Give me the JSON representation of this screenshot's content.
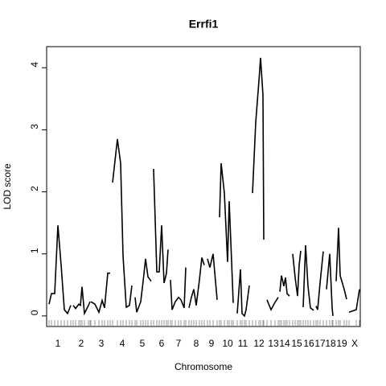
{
  "chart_data": {
    "type": "line",
    "title": "Errfi1",
    "x_label": "Chromosome",
    "y_label": "LOD score",
    "xlim": [
      0,
      390
    ],
    "ylim": [
      -0.17,
      4.34
    ],
    "yticks": [
      0,
      1,
      2,
      3,
      4
    ],
    "xticks": [
      {
        "value": 14,
        "label": "1"
      },
      {
        "value": 43,
        "label": "2"
      },
      {
        "value": 68,
        "label": "3"
      },
      {
        "value": 94,
        "label": "4"
      },
      {
        "value": 119,
        "label": "5"
      },
      {
        "value": 143,
        "label": "6"
      },
      {
        "value": 164,
        "label": "7"
      },
      {
        "value": 186,
        "label": "8"
      },
      {
        "value": 205,
        "label": "9"
      },
      {
        "value": 225,
        "label": "10"
      },
      {
        "value": 244,
        "label": "11"
      },
      {
        "value": 264,
        "label": "12"
      },
      {
        "value": 282,
        "label": "13"
      },
      {
        "value": 296,
        "label": "14"
      },
      {
        "value": 311,
        "label": "15"
      },
      {
        "value": 326,
        "label": "16"
      },
      {
        "value": 340,
        "label": "17"
      },
      {
        "value": 353,
        "label": "18"
      },
      {
        "value": 367,
        "label": "19"
      },
      {
        "value": 383,
        "label": "X"
      }
    ],
    "series": [
      {
        "color": "#000000",
        "x": [
          3,
          6,
          10,
          14,
          18,
          22,
          26,
          30
        ],
        "values": [
          0.19,
          0.36,
          0.36,
          1.46,
          0.82,
          0.1,
          0.04,
          0.17
        ]
      },
      {
        "color": "#000000",
        "x": [
          33,
          36,
          40,
          42,
          44,
          47,
          52,
          54
        ],
        "values": [
          0.17,
          0.12,
          0.19,
          0.17,
          0.47,
          0.04,
          0.17,
          0.23
        ]
      },
      {
        "color": "#000000",
        "x": [
          55,
          60,
          65,
          69,
          72,
          76,
          79
        ],
        "values": [
          0.23,
          0.19,
          0.06,
          0.25,
          0.13,
          0.69,
          0.69
        ]
      },
      {
        "color": "#000000",
        "x": [
          82,
          88,
          92,
          95,
          99,
          103,
          106
        ],
        "values": [
          2.15,
          2.85,
          2.46,
          0.97,
          0.14,
          0.17,
          0.49
        ]
      },
      {
        "color": "#000000",
        "x": [
          110,
          112,
          117,
          120,
          123,
          126,
          130
        ],
        "values": [
          0.3,
          0.06,
          0.23,
          0.56,
          0.92,
          0.63,
          0.56
        ]
      },
      {
        "color": "#000000",
        "x": [
          133,
          137,
          140,
          143,
          146,
          149,
          151
        ],
        "values": [
          2.37,
          0.71,
          0.71,
          1.46,
          0.53,
          0.69,
          1.07
        ]
      },
      {
        "color": "#000000",
        "x": [
          154,
          156,
          160,
          164,
          167,
          171,
          173
        ],
        "values": [
          0.58,
          0.1,
          0.23,
          0.3,
          0.26,
          0.13,
          0.78
        ]
      },
      {
        "color": "#000000",
        "x": [
          177,
          180,
          183,
          186,
          190,
          193,
          196
        ],
        "values": [
          0.13,
          0.3,
          0.43,
          0.17,
          0.58,
          0.94,
          0.82
        ]
      },
      {
        "color": "#000000",
        "x": [
          200,
          203,
          207,
          212
        ],
        "values": [
          0.92,
          0.78,
          1.0,
          0.26
        ]
      },
      {
        "color": "#000000",
        "x": [
          215,
          217,
          221,
          225,
          227,
          230,
          232
        ],
        "values": [
          1.59,
          2.46,
          1.98,
          0.87,
          1.85,
          0.88,
          0.21
        ]
      },
      {
        "color": "#000000",
        "x": [
          237,
          241,
          243,
          246,
          248,
          252
        ],
        "values": [
          0.04,
          0.75,
          0.04,
          0,
          0.1,
          0.49
        ]
      },
      {
        "color": "#000000",
        "x": [
          256,
          260,
          264,
          266,
          269,
          270
        ],
        "values": [
          1.98,
          3.12,
          3.79,
          4.16,
          3.56,
          1.23
        ]
      },
      {
        "color": "#000000",
        "x": [
          274,
          279,
          284,
          288
        ],
        "values": [
          0.26,
          0.1,
          0.22,
          0.3
        ]
      },
      {
        "color": "#000000",
        "x": [
          290,
          292,
          295,
          297,
          299,
          302
        ],
        "values": [
          0.39,
          0.65,
          0.48,
          0.62,
          0.36,
          0.32
        ]
      },
      {
        "color": "#000000",
        "x": [
          306,
          309,
          312,
          314,
          316
        ],
        "values": [
          1.0,
          0.62,
          0.32,
          0.82,
          1.05
        ]
      },
      {
        "color": "#000000",
        "x": [
          319,
          322,
          325,
          328,
          332
        ],
        "values": [
          0.14,
          1.14,
          0.48,
          0.13,
          0.09
        ]
      },
      {
        "color": "#000000",
        "x": [
          335,
          337,
          340,
          344
        ],
        "values": [
          0.16,
          0.1,
          0.53,
          1.04
        ]
      },
      {
        "color": "#000000",
        "x": [
          348,
          352,
          355,
          356
        ],
        "values": [
          0.43,
          1.0,
          0.14,
          0
        ]
      },
      {
        "color": "#000000",
        "x": [
          360,
          363,
          365,
          370,
          373
        ],
        "values": [
          0.56,
          1.42,
          0.65,
          0.43,
          0.27
        ]
      },
      {
        "color": "#000000",
        "x": [
          376,
          385,
          389
        ],
        "values": [
          0.06,
          0.1,
          0.43
        ]
      }
    ]
  }
}
